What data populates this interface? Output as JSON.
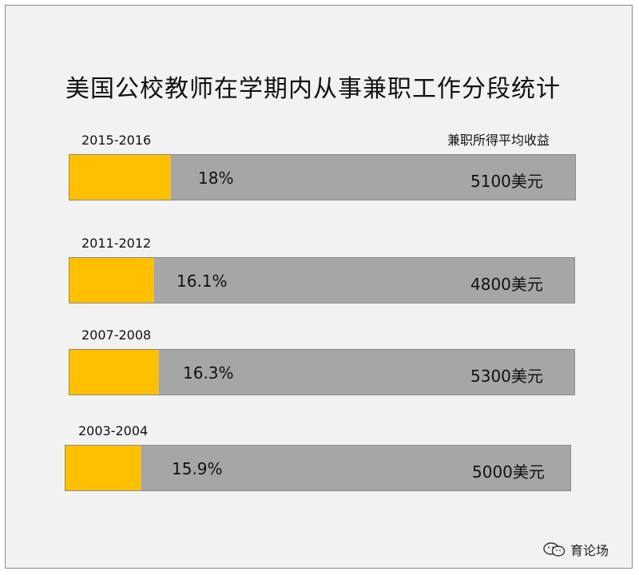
{
  "chart_data": {
    "type": "bar",
    "title": "美国公校教师在学期内从事兼职工作分段统计",
    "column_header": "兼职所得平均收益",
    "rows": [
      {
        "period": "2015-2016",
        "percent": 18,
        "percent_label": "18%",
        "earnings_label": "5100美元"
      },
      {
        "period": "2011-2012",
        "percent": 16.1,
        "percent_label": "16.1%",
        "earnings_label": "4800美元"
      },
      {
        "period": "2007-2008",
        "percent": 16.3,
        "percent_label": "16.3%",
        "earnings_label": "5300美元"
      },
      {
        "period": "2003-2004",
        "percent": 15.9,
        "percent_label": "15.9%",
        "earnings_label": "5000美元"
      }
    ],
    "colors": {
      "fill": "#ffc000",
      "track": "#a6a6a6"
    }
  },
  "watermark": {
    "text": "育论场",
    "icon": "wechat-icon"
  }
}
